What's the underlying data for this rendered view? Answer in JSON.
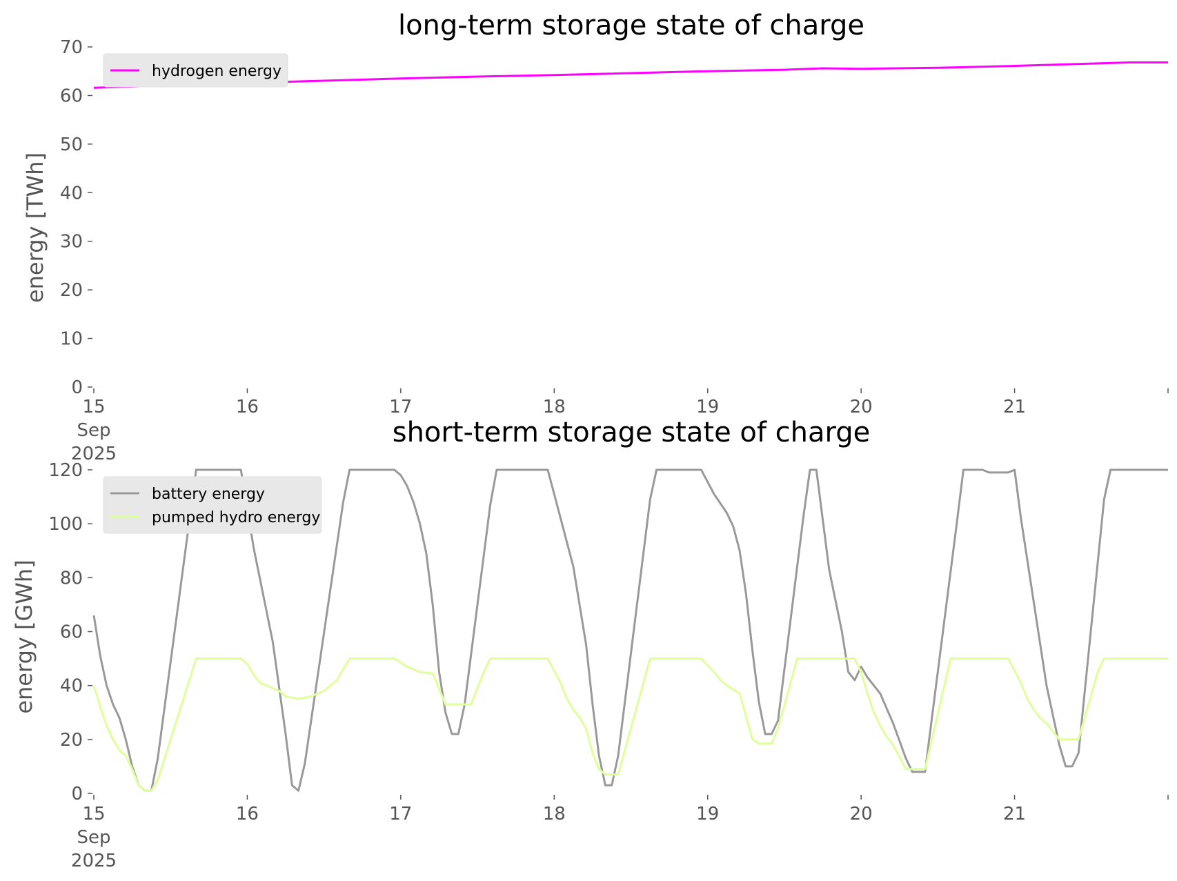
{
  "chart_data": [
    {
      "type": "line",
      "title": "long-term storage state of charge",
      "ylabel": "energy [TWh]",
      "xlabel": "",
      "ylim": [
        0,
        70
      ],
      "yticks": [
        0,
        10,
        20,
        30,
        40,
        50,
        60,
        70
      ],
      "ytick_labels": [
        "0",
        "10",
        "20",
        "30",
        "40",
        "50",
        "60",
        "70"
      ],
      "xlim": [
        "2025-09-15",
        "2025-09-22"
      ],
      "xticks": [
        "2025-09-15",
        "2025-09-16",
        "2025-09-17",
        "2025-09-18",
        "2025-09-19",
        "2025-09-20",
        "2025-09-21",
        "2025-09-22"
      ],
      "xtick_labels": [
        "15",
        "16",
        "17",
        "18",
        "19",
        "20",
        "21",
        ""
      ],
      "xtick_first_sublabels": [
        "Sep",
        "2025"
      ],
      "legend_position": "upper-left",
      "grid": false,
      "series": [
        {
          "name": "hydrogen energy",
          "color": "#ff00ff",
          "points": [
            [
              "2025-09-15 00:00",
              61.6
            ],
            [
              "2025-09-16 00:00",
              62.6
            ],
            [
              "2025-09-17 00:00",
              63.5
            ],
            [
              "2025-09-17 12:00",
              63.9
            ],
            [
              "2025-09-18 00:00",
              64.2
            ],
            [
              "2025-09-19 00:00",
              65.0
            ],
            [
              "2025-09-19 12:00",
              65.3
            ],
            [
              "2025-09-19 18:00",
              65.6
            ],
            [
              "2025-09-20 00:00",
              65.5
            ],
            [
              "2025-09-20 12:00",
              65.7
            ],
            [
              "2025-09-21 00:00",
              66.1
            ],
            [
              "2025-09-21 18:00",
              66.8
            ],
            [
              "2025-09-22 00:00",
              66.8
            ]
          ]
        }
      ]
    },
    {
      "type": "line",
      "title": "short-term storage state of charge",
      "ylabel": "energy [GWh]",
      "xlabel": "",
      "ylim": [
        0,
        120
      ],
      "yticks": [
        0,
        20,
        40,
        60,
        80,
        100,
        120
      ],
      "ytick_labels": [
        "0",
        "20",
        "40",
        "60",
        "80",
        "100",
        "120"
      ],
      "xlim": [
        "2025-09-15",
        "2025-09-22"
      ],
      "xticks": [
        "2025-09-15",
        "2025-09-16",
        "2025-09-17",
        "2025-09-18",
        "2025-09-19",
        "2025-09-20",
        "2025-09-21",
        "2025-09-22"
      ],
      "xtick_labels": [
        "15",
        "16",
        "17",
        "18",
        "19",
        "20",
        "21",
        ""
      ],
      "xtick_first_sublabels": [
        "Sep",
        "2025"
      ],
      "legend_position": "upper-left",
      "grid": false,
      "series": [
        {
          "name": "battery energy",
          "color": "#999999",
          "points": [
            [
              "2025-09-15 00:00",
              66
            ],
            [
              "2025-09-15 01:00",
              51
            ],
            [
              "2025-09-15 02:00",
              40
            ],
            [
              "2025-09-15 03:00",
              33
            ],
            [
              "2025-09-15 04:00",
              28
            ],
            [
              "2025-09-15 05:00",
              20
            ],
            [
              "2025-09-15 06:00",
              10
            ],
            [
              "2025-09-15 07:00",
              3
            ],
            [
              "2025-09-15 08:00",
              1
            ],
            [
              "2025-09-15 09:00",
              1
            ],
            [
              "2025-09-15 10:00",
              13
            ],
            [
              "2025-09-15 16:00",
              120
            ],
            [
              "2025-09-15 23:00",
              120
            ],
            [
              "2025-09-16 01:00",
              91
            ],
            [
              "2025-09-16 04:00",
              56
            ],
            [
              "2025-09-16 06:00",
              22
            ],
            [
              "2025-09-16 07:00",
              3
            ],
            [
              "2025-09-16 08:00",
              1
            ],
            [
              "2025-09-16 09:00",
              11
            ],
            [
              "2025-09-16 15:00",
              108
            ],
            [
              "2025-09-16 16:00",
              120
            ],
            [
              "2025-09-16 23:00",
              120
            ],
            [
              "2025-09-17 00:00",
              118
            ],
            [
              "2025-09-17 01:00",
              114
            ],
            [
              "2025-09-17 02:00",
              108
            ],
            [
              "2025-09-17 03:00",
              100
            ],
            [
              "2025-09-17 04:00",
              89
            ],
            [
              "2025-09-17 05:00",
              70
            ],
            [
              "2025-09-17 06:00",
              45
            ],
            [
              "2025-09-17 07:00",
              30
            ],
            [
              "2025-09-17 08:00",
              22
            ],
            [
              "2025-09-17 09:00",
              22
            ],
            [
              "2025-09-17 10:00",
              33
            ],
            [
              "2025-09-17 14:00",
              107
            ],
            [
              "2025-09-17 15:00",
              120
            ],
            [
              "2025-09-17 23:00",
              120
            ],
            [
              "2025-09-18 00:00",
              111
            ],
            [
              "2025-09-18 03:00",
              84
            ],
            [
              "2025-09-18 05:00",
              55
            ],
            [
              "2025-09-18 06:00",
              33
            ],
            [
              "2025-09-18 07:00",
              14
            ],
            [
              "2025-09-18 08:00",
              3
            ],
            [
              "2025-09-18 09:00",
              3
            ],
            [
              "2025-09-18 10:00",
              14
            ],
            [
              "2025-09-18 15:00",
              109
            ],
            [
              "2025-09-18 16:00",
              120
            ],
            [
              "2025-09-18 23:00",
              120
            ],
            [
              "2025-09-19 01:00",
              111
            ],
            [
              "2025-09-19 03:00",
              104
            ],
            [
              "2025-09-19 04:00",
              99
            ],
            [
              "2025-09-19 05:00",
              90
            ],
            [
              "2025-09-19 06:00",
              74
            ],
            [
              "2025-09-19 07:00",
              53
            ],
            [
              "2025-09-19 08:00",
              34
            ],
            [
              "2025-09-19 09:00",
              22
            ],
            [
              "2025-09-19 10:00",
              22
            ],
            [
              "2025-09-19 11:00",
              27
            ],
            [
              "2025-09-19 15:00",
              103
            ],
            [
              "2025-09-19 16:00",
              120
            ],
            [
              "2025-09-19 17:00",
              120
            ],
            [
              "2025-09-19 19:00",
              83
            ],
            [
              "2025-09-19 21:00",
              60
            ],
            [
              "2025-09-19 22:00",
              45
            ],
            [
              "2025-09-19 23:00",
              42
            ],
            [
              "2025-09-20 00:00",
              47
            ],
            [
              "2025-09-20 01:00",
              43
            ],
            [
              "2025-09-20 03:00",
              37
            ],
            [
              "2025-09-20 05:00",
              26
            ],
            [
              "2025-09-20 07:00",
              13
            ],
            [
              "2025-09-20 08:00",
              8
            ],
            [
              "2025-09-20 10:00",
              8
            ],
            [
              "2025-09-20 15:00",
              101
            ],
            [
              "2025-09-20 16:00",
              120
            ],
            [
              "2025-09-20 19:00",
              120
            ],
            [
              "2025-09-20 20:00",
              119
            ],
            [
              "2025-09-20 22:00",
              119
            ],
            [
              "2025-09-20 23:00",
              119
            ],
            [
              "2025-09-21 00:00",
              120
            ],
            [
              "2025-09-21 01:00",
              102
            ],
            [
              "2025-09-21 05:00",
              40
            ],
            [
              "2025-09-21 07:00",
              18
            ],
            [
              "2025-09-21 08:00",
              10
            ],
            [
              "2025-09-21 09:00",
              10
            ],
            [
              "2025-09-21 10:00",
              15
            ],
            [
              "2025-09-21 14:00",
              109
            ],
            [
              "2025-09-21 15:00",
              120
            ],
            [
              "2025-09-22 00:00",
              120
            ]
          ]
        },
        {
          "name": "pumped hydro energy",
          "color": "#dfff99",
          "points": [
            [
              "2025-09-15 00:00",
              40
            ],
            [
              "2025-09-15 01:00",
              32
            ],
            [
              "2025-09-15 02:00",
              25
            ],
            [
              "2025-09-15 03:00",
              20
            ],
            [
              "2025-09-15 04:00",
              16
            ],
            [
              "2025-09-15 05:00",
              14
            ],
            [
              "2025-09-15 06:00",
              9
            ],
            [
              "2025-09-15 07:00",
              3
            ],
            [
              "2025-09-15 08:00",
              1
            ],
            [
              "2025-09-15 09:00",
              1
            ],
            [
              "2025-09-15 10:00",
              5
            ],
            [
              "2025-09-15 16:00",
              50
            ],
            [
              "2025-09-15 23:00",
              50
            ],
            [
              "2025-09-16 00:00",
              48
            ],
            [
              "2025-09-16 01:00",
              44
            ],
            [
              "2025-09-16 02:00",
              41
            ],
            [
              "2025-09-16 04:00",
              39
            ],
            [
              "2025-09-16 05:00",
              38
            ],
            [
              "2025-09-16 06:00",
              36
            ],
            [
              "2025-09-16 08:00",
              35
            ],
            [
              "2025-09-16 10:00",
              36
            ],
            [
              "2025-09-16 12:00",
              38
            ],
            [
              "2025-09-16 14:00",
              42
            ],
            [
              "2025-09-16 16:00",
              50
            ],
            [
              "2025-09-16 23:00",
              50
            ],
            [
              "2025-09-17 01:00",
              47
            ],
            [
              "2025-09-17 03:00",
              45
            ],
            [
              "2025-09-17 05:00",
              44.5
            ],
            [
              "2025-09-17 07:00",
              33
            ],
            [
              "2025-09-17 11:00",
              33
            ],
            [
              "2025-09-17 13:00",
              45
            ],
            [
              "2025-09-17 14:00",
              50
            ],
            [
              "2025-09-17 23:00",
              50
            ],
            [
              "2025-09-18 01:00",
              41
            ],
            [
              "2025-09-18 02:00",
              35
            ],
            [
              "2025-09-18 03:00",
              31
            ],
            [
              "2025-09-18 04:00",
              28
            ],
            [
              "2025-09-18 05:00",
              24
            ],
            [
              "2025-09-18 06:00",
              15
            ],
            [
              "2025-09-18 07:00",
              9
            ],
            [
              "2025-09-18 08:00",
              7
            ],
            [
              "2025-09-18 10:00",
              7
            ],
            [
              "2025-09-18 15:00",
              50
            ],
            [
              "2025-09-18 23:00",
              50
            ],
            [
              "2025-09-19 01:00",
              45
            ],
            [
              "2025-09-19 02:00",
              42
            ],
            [
              "2025-09-19 03:00",
              40
            ],
            [
              "2025-09-19 05:00",
              37
            ],
            [
              "2025-09-19 07:00",
              20
            ],
            [
              "2025-09-19 08:00",
              18.5
            ],
            [
              "2025-09-19 10:00",
              18.5
            ],
            [
              "2025-09-19 11:00",
              24
            ],
            [
              "2025-09-19 14:00",
              50
            ],
            [
              "2025-09-19 23:00",
              50
            ],
            [
              "2025-09-20 00:00",
              45
            ],
            [
              "2025-09-20 01:00",
              37
            ],
            [
              "2025-09-20 02:00",
              30
            ],
            [
              "2025-09-20 03:00",
              25
            ],
            [
              "2025-09-20 04:00",
              21
            ],
            [
              "2025-09-20 05:00",
              18
            ],
            [
              "2025-09-20 07:00",
              9
            ],
            [
              "2025-09-20 10:00",
              9
            ],
            [
              "2025-09-20 14:00",
              50
            ],
            [
              "2025-09-20 23:00",
              50
            ],
            [
              "2025-09-21 01:00",
              41
            ],
            [
              "2025-09-21 02:00",
              35
            ],
            [
              "2025-09-21 03:00",
              31
            ],
            [
              "2025-09-21 04:00",
              28
            ],
            [
              "2025-09-21 05:00",
              26
            ],
            [
              "2025-09-21 06:00",
              23
            ],
            [
              "2025-09-21 07:00",
              20
            ],
            [
              "2025-09-21 10:00",
              20
            ],
            [
              "2025-09-21 13:00",
              45
            ],
            [
              "2025-09-21 14:00",
              50
            ],
            [
              "2025-09-22 00:00",
              50
            ]
          ]
        }
      ]
    }
  ]
}
